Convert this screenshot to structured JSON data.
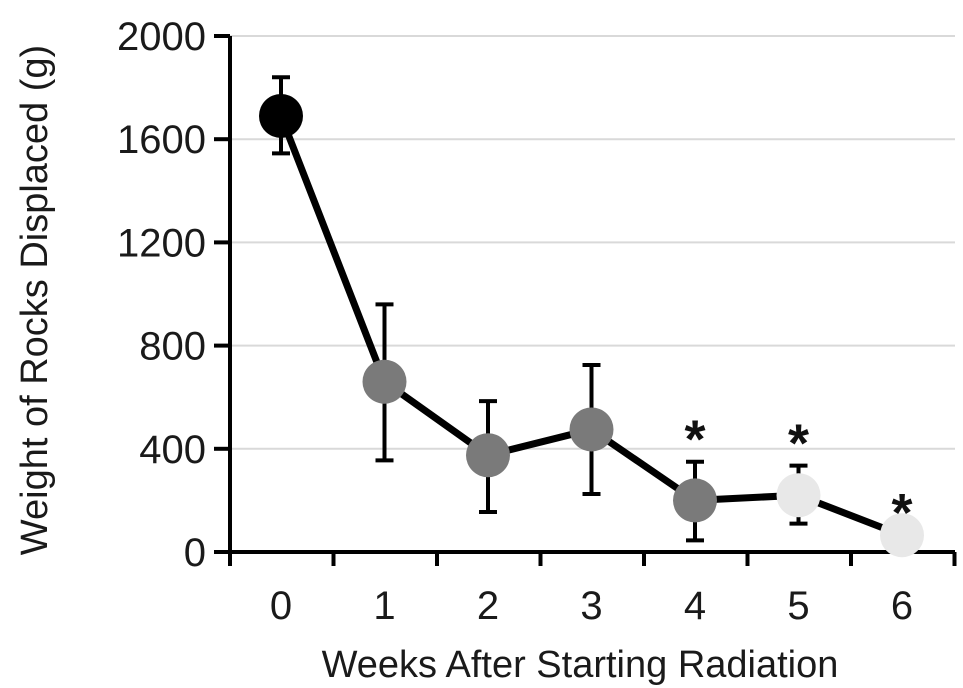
{
  "chart_data": {
    "type": "line",
    "title": "",
    "xlabel": "Weeks After Starting Radiation",
    "ylabel": "Weight of Rocks Displaced (g)",
    "ylim": [
      0,
      2000
    ],
    "yticks": [
      "0",
      "400",
      "800",
      "1200",
      "1600",
      "2000"
    ],
    "grid": true,
    "series": [
      {
        "x": [
          "0",
          "1",
          "2",
          "3",
          "4",
          "5",
          "6"
        ],
        "y": [
          1690,
          660,
          375,
          475,
          200,
          220,
          65
        ],
        "error_upper": [
          1840,
          960,
          585,
          725,
          350,
          335,
          null
        ],
        "error_lower": [
          1545,
          355,
          155,
          225,
          45,
          110,
          null
        ],
        "significant": [
          "",
          "",
          "",
          "",
          "*",
          "*",
          "*"
        ],
        "marker_colors": [
          "#000000",
          "#7a7a7a",
          "#7a7a7a",
          "#7a7a7a",
          "#7a7a7a",
          "#e8e8e8",
          "#e8e8e8"
        ]
      }
    ]
  },
  "colors": {
    "line": "#000000",
    "grid": "#d9d9d9",
    "axis": "#000000"
  }
}
